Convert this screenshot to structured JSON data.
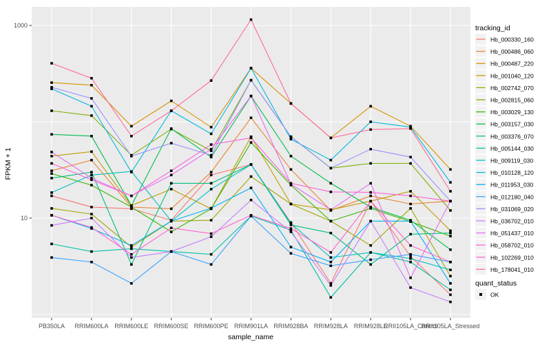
{
  "figure": {
    "y_axis": {
      "label": "FPKM + 1",
      "tick_values": [
        1000,
        10
      ],
      "tick_labels": [
        "1000",
        "10"
      ],
      "gridline_values": [
        1,
        10,
        100,
        1000
      ],
      "scale": "log10"
    },
    "x_axis": {
      "label": "sample_name"
    },
    "legend": {
      "color_title": "tracking_id",
      "shape_title": "quant_status",
      "shape_items": [
        {
          "label": "OK",
          "marker": "filled-black-square"
        }
      ],
      "key_background": "#f2f2f2"
    },
    "panel": {
      "background": "#ebebeb",
      "gridline_color": "#ffffff"
    }
  },
  "chart_data": {
    "type": "line",
    "title": "",
    "xlabel": "sample_name",
    "ylabel": "FPKM + 1",
    "y_scale": "log10",
    "ylim": [
      1,
      1300
    ],
    "grid": true,
    "legend_position": "right",
    "point_marker": "black-square",
    "x_categories": [
      "PB350LA",
      "RRIM600LA",
      "RRIM600LE",
      "RRIM600SE",
      "RRIM600PE",
      "RRIM901LA",
      "RRIM928BA",
      "RRIM928LA",
      "RRIM928LE",
      "RRII105LA_Control",
      "RRII105LA_Stressed"
    ],
    "series": [
      {
        "name": "Hb_000330_160",
        "color": "#F8766D",
        "values": [
          17,
          13,
          12.5,
          9.5,
          28,
          36,
          9,
          2.1,
          15,
          4.0,
          1.6
        ]
      },
      {
        "name": "Hb_000486_060",
        "color": "#EA8331",
        "values": [
          31,
          40,
          13,
          12.5,
          30,
          110,
          32,
          12,
          17,
          14,
          15
        ]
      },
      {
        "name": "Hb_000487_220",
        "color": "#D89000",
        "values": [
          255,
          240,
          90,
          165,
          88,
          360,
          155,
          68,
          145,
          90,
          32
        ]
      },
      {
        "name": "Hb_001040_120",
        "color": "#C09B00",
        "values": [
          44,
          49,
          13.5,
          20,
          12.5,
          70,
          14,
          12.2,
          15,
          19,
          7.4
        ]
      },
      {
        "name": "Hb_002742_070",
        "color": "#A3A500",
        "values": [
          12.6,
          11,
          5,
          9.3,
          9.5,
          27,
          14,
          9.3,
          5.2,
          12.6,
          2.5
        ]
      },
      {
        "name": "Hb_002815_060",
        "color": "#7CAE00",
        "values": [
          130,
          116,
          45,
          84,
          50,
          270,
          70,
          33,
          37,
          37,
          12
        ]
      },
      {
        "name": "Hb_003029_130",
        "color": "#39B600",
        "values": [
          29,
          22,
          13,
          7.2,
          12.5,
          61,
          22,
          9.3,
          12.6,
          9.2,
          6.5
        ]
      },
      {
        "name": "Hb_003157_030",
        "color": "#00BB4E",
        "values": [
          74,
          71,
          13.5,
          85,
          43,
          185,
          44,
          23,
          13,
          9.5,
          4.7
        ]
      },
      {
        "name": "Hb_003376_070",
        "color": "#00BF7D",
        "values": [
          26,
          30,
          3.3,
          23,
          23,
          36,
          8.5,
          7,
          3.3,
          6.8,
          7
        ]
      },
      {
        "name": "Hb_005144_030",
        "color": "#00C1A3",
        "values": [
          5.4,
          4.5,
          4.8,
          4.5,
          4.2,
          10.5,
          7.5,
          1.5,
          4.4,
          3.5,
          1.8
        ]
      },
      {
        "name": "Hb_009119_030",
        "color": "#00BFC4",
        "values": [
          18.4,
          28,
          30.5,
          9.3,
          20,
          36,
          8.8,
          3.9,
          4.4,
          3.8,
          2.9
        ]
      },
      {
        "name": "Hb_010128_120",
        "color": "#00BAE0",
        "values": [
          220,
          145,
          30,
          130,
          75,
          360,
          66,
          40,
          100,
          88,
          23.5
        ]
      },
      {
        "name": "Hb_011953_030",
        "color": "#00B0F6",
        "values": [
          10.7,
          7.8,
          5.2,
          9.3,
          12.7,
          20.6,
          5,
          3.5,
          9.3,
          9.3,
          2.1
        ]
      },
      {
        "name": "Hb_012180_040",
        "color": "#35A2FF",
        "values": [
          3.9,
          3.5,
          2.1,
          4.5,
          3.3,
          10.5,
          4.3,
          3.2,
          3.7,
          4.2,
          3.5
        ]
      },
      {
        "name": "Hb_031069_020",
        "color": "#9590FF",
        "values": [
          228,
          175,
          44,
          60,
          45,
          270,
          70,
          33,
          52,
          43,
          15
        ]
      },
      {
        "name": "Hb_036702_010",
        "color": "#C77CFF",
        "values": [
          8.4,
          10,
          3.9,
          4.5,
          6.4,
          15.4,
          7.2,
          2.0,
          9.3,
          1.9,
          1.35
        ]
      },
      {
        "name": "Hb_051437_010",
        "color": "#E76BF3",
        "values": [
          48.5,
          26,
          17,
          28,
          52,
          185,
          22.5,
          12.2,
          23,
          2.4,
          15
        ]
      },
      {
        "name": "Hb_058702_010",
        "color": "#FA62DB",
        "values": [
          37,
          25,
          17,
          31,
          58,
          68,
          23,
          18.7,
          18.5,
          17,
          15
        ]
      },
      {
        "name": "Hb_102269_010",
        "color": "#FF61CC",
        "values": [
          10.7,
          8,
          4.2,
          7.9,
          6.9,
          10.7,
          7.8,
          4.4,
          15,
          5.2,
          3.5
        ]
      },
      {
        "name": "Hb_178041_010",
        "color": "#FF6A98",
        "values": [
          405,
          283,
          71,
          130,
          268,
          1150,
          155,
          68,
          83,
          85,
          19
        ]
      }
    ]
  }
}
